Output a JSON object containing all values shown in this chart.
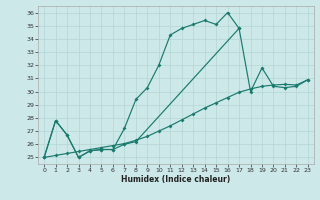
{
  "xlabel": "Humidex (Indice chaleur)",
  "bg_color": "#cce8e8",
  "grid_color": "#b8d8d8",
  "line_color": "#1a7a6e",
  "xlim": [
    -0.5,
    23.5
  ],
  "ylim": [
    24.5,
    36.5
  ],
  "xticks": [
    0,
    1,
    2,
    3,
    4,
    5,
    6,
    7,
    8,
    9,
    10,
    11,
    12,
    13,
    14,
    15,
    16,
    17,
    18,
    19,
    20,
    21,
    22,
    23
  ],
  "yticks": [
    25,
    26,
    27,
    28,
    29,
    30,
    31,
    32,
    33,
    34,
    35,
    36
  ],
  "line1_x": [
    0,
    1,
    2,
    3,
    4,
    5,
    6,
    7,
    8,
    9,
    10,
    11,
    12,
    13,
    14,
    15,
    16,
    17
  ],
  "line1_y": [
    25.0,
    27.8,
    26.7,
    25.0,
    25.5,
    25.6,
    25.6,
    27.2,
    29.4,
    30.3,
    32.0,
    34.3,
    34.8,
    35.1,
    35.4,
    35.1,
    36.0,
    34.8
  ],
  "line2_x": [
    0,
    1,
    2,
    3,
    4,
    5,
    6,
    7,
    8,
    17,
    18,
    19,
    20,
    21,
    22,
    23
  ],
  "line2_y": [
    25.0,
    27.8,
    26.7,
    25.0,
    25.5,
    25.6,
    25.6,
    26.0,
    26.2,
    34.8,
    30.0,
    31.8,
    30.4,
    30.3,
    30.4,
    30.9
  ],
  "line3_x": [
    0,
    1,
    2,
    3,
    4,
    5,
    6,
    7,
    8,
    9,
    10,
    11,
    12,
    13,
    14,
    15,
    16,
    17,
    18,
    19,
    20,
    21,
    22,
    23
  ],
  "line3_y": [
    25.0,
    25.15,
    25.3,
    25.45,
    25.6,
    25.75,
    25.9,
    26.05,
    26.3,
    26.6,
    27.0,
    27.4,
    27.85,
    28.3,
    28.75,
    29.15,
    29.55,
    29.95,
    30.2,
    30.4,
    30.5,
    30.55,
    30.5,
    30.9
  ]
}
